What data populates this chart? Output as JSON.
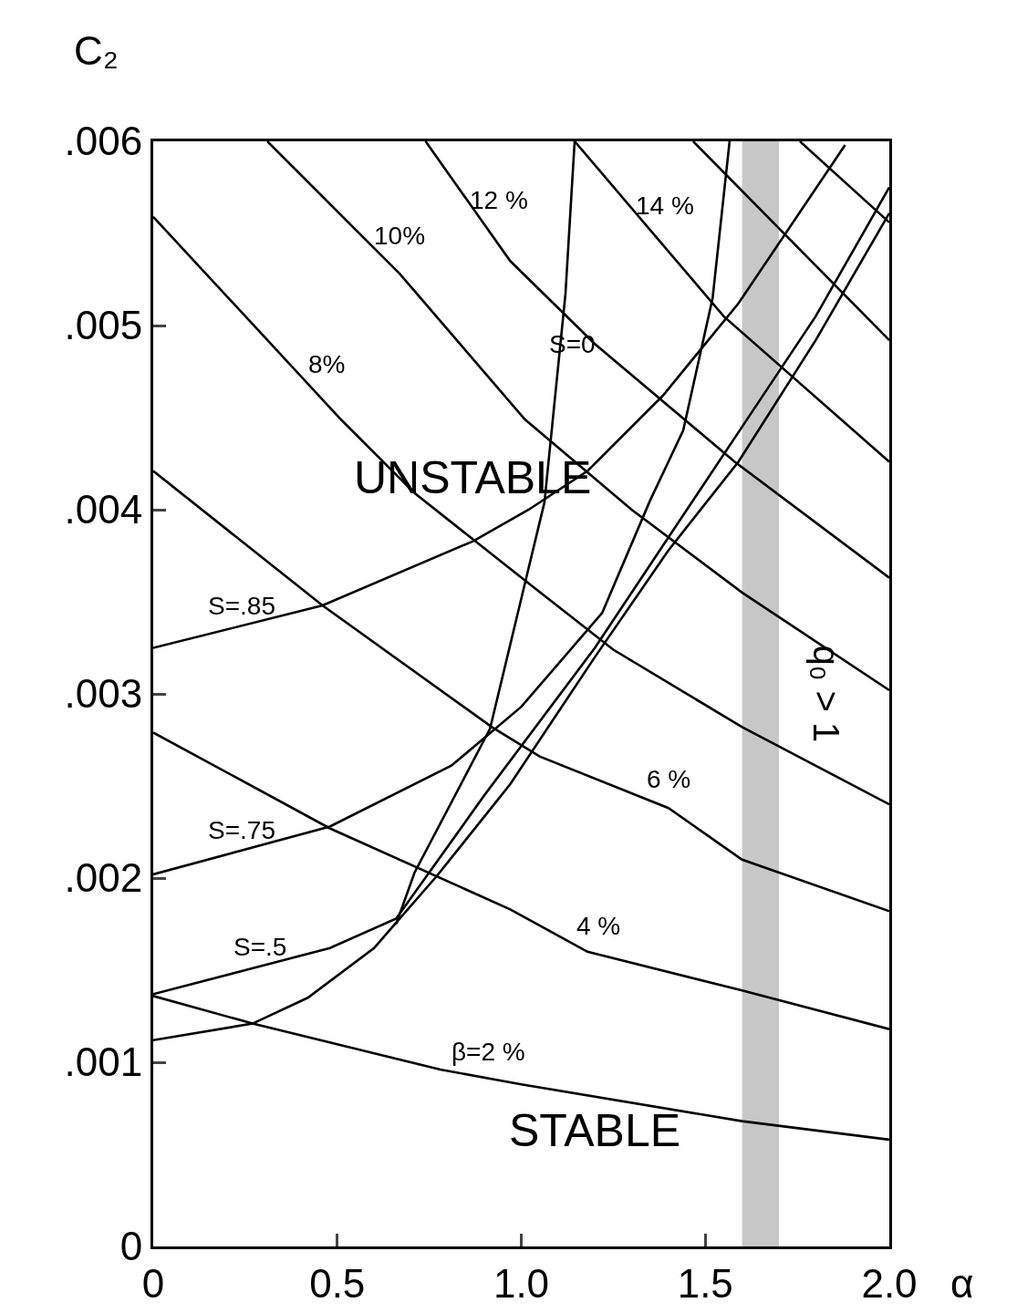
{
  "chart_data": {
    "type": "line",
    "xlabel": "α",
    "ylabel": "C₂",
    "xlim": [
      0,
      2
    ],
    "xticks": [
      0,
      0.5,
      {
        "value": 1,
        "label": "1.0"
      },
      1.5,
      {
        "value": 2,
        "label": "2.0"
      }
    ],
    "ylim": [
      0,
      0.006
    ],
    "yticks": [
      0,
      {
        "value": 0.001,
        "label": ".001"
      },
      {
        "value": 0.002,
        "label": ".002"
      },
      {
        "value": 0.003,
        "label": ".003"
      },
      {
        "value": 0.004,
        "label": ".004"
      },
      {
        "value": 0.005,
        "label": ".005"
      },
      {
        "value": 0.006,
        "label": ".006"
      }
    ],
    "grid": false,
    "marker": "none",
    "line_style": "solid",
    "series": [
      {
        "color": "#000000",
        "x": [
          0,
          0.27,
          0.78,
          1.0,
          1.6,
          2.0
        ],
        "values": [
          0.00136,
          0.00121,
          0.00096,
          0.00088,
          0.00068,
          0.00058
        ]
      },
      {
        "color": "#000000",
        "x": [
          0,
          0.48,
          0.97,
          1.18,
          1.6,
          2.0
        ],
        "values": [
          0.00279,
          0.00227,
          0.00183,
          0.0016,
          0.00139,
          0.00118
        ]
      },
      {
        "color": "#000000",
        "x": [
          0,
          0.46,
          0.92,
          1.05,
          1.4,
          1.6,
          2.0
        ],
        "values": [
          0.00421,
          0.00348,
          0.00282,
          0.00266,
          0.00238,
          0.0021,
          0.00182
        ]
      },
      {
        "color": "#000000",
        "x": [
          0,
          0.51,
          0.71,
          1.02,
          1.25,
          1.6,
          2.0
        ],
        "values": [
          0.00559,
          0.00449,
          0.00409,
          0.0036,
          0.00324,
          0.00282,
          0.0024
        ]
      },
      {
        "color": "#000000",
        "x": [
          0.31,
          0.67,
          1.01,
          1.3,
          1.6,
          2.0
        ],
        "values": [
          0.006,
          0.00528,
          0.00449,
          0.004,
          0.00355,
          0.00302
        ]
      },
      {
        "color": "#000000",
        "x": [
          0.74,
          0.97,
          1.2,
          1.58,
          2.0
        ],
        "values": [
          0.006,
          0.00535,
          0.0049,
          0.00426,
          0.00363
        ]
      },
      {
        "color": "#000000",
        "x": [
          1.145,
          1.55,
          2.0
        ],
        "values": [
          0.006,
          0.00505,
          0.00426
        ]
      },
      {
        "color": "#000000",
        "x": [
          1.467,
          2.0
        ],
        "values": [
          0.006,
          0.00492
        ]
      },
      {
        "color": "#000000",
        "x": [
          1.757,
          2.0
        ],
        "values": [
          0.006,
          0.00556
        ]
      },
      {
        "color": "#000000",
        "x": [
          0.66,
          0.71,
          0.915,
          1.01,
          1.063,
          1.12,
          1.145
        ],
        "values": [
          0.00175,
          0.00203,
          0.00281,
          0.0036,
          0.00404,
          0.00517,
          0.006
        ]
      },
      {
        "color": "#000000",
        "x": [
          0,
          0.48,
          0.81,
          1.0,
          1.22,
          1.35,
          1.44,
          1.52,
          1.566
        ],
        "values": [
          0.00202,
          0.00228,
          0.00261,
          0.00293,
          0.00344,
          0.00405,
          0.00443,
          0.00515,
          0.006
        ]
      },
      {
        "color": "#000000",
        "x": [
          0,
          0.46,
          0.87,
          1.02,
          1.18,
          1.385,
          1.59,
          1.88
        ],
        "values": [
          0.00325,
          0.00348,
          0.00383,
          0.004,
          0.00421,
          0.00462,
          0.00512,
          0.00598
        ]
      },
      {
        "color": "#000000",
        "x": [
          0,
          0.25,
          0.48,
          0.66,
          0.9,
          1.2,
          1.4,
          1.6,
          1.8,
          2.0
        ],
        "values": [
          0.00137,
          0.0015,
          0.00162,
          0.00178,
          0.00245,
          0.00325,
          0.00385,
          0.00445,
          0.00505,
          0.00575
        ]
      },
      {
        "color": "#000000",
        "x": [
          0,
          0.27,
          0.42,
          0.6,
          0.77,
          0.97,
          1.2,
          1.4,
          1.59,
          1.8,
          2.0
        ],
        "values": [
          0.00112,
          0.00121,
          0.00135,
          0.00162,
          0.00201,
          0.00251,
          0.0032,
          0.00378,
          0.00426,
          0.00492,
          0.00561
        ]
      }
    ],
    "bands": [
      {
        "axis": "x",
        "from": 1.6,
        "to": 1.7,
        "label": "q₀ > 1",
        "color": "#000000"
      }
    ],
    "annotations": [
      "UNSTABLE",
      "STABLE",
      {
        "text": "β=2 %",
        "x": 0.87,
        "y": 0.00093
      },
      {
        "text": "4 %",
        "x": 1.17,
        "y": 0.00161
      },
      {
        "text": "6 %",
        "x": 1.36,
        "y": 0.00241
      },
      {
        "text": "8%",
        "x": 0.43,
        "y": 0.00466
      },
      {
        "text": "10%",
        "x": 0.63,
        "y": 0.00536
      },
      {
        "text": "12 %",
        "x": 0.9,
        "y": 0.00555
      },
      {
        "text": "14 %",
        "x": 1.35,
        "y": 0.00552
      },
      {
        "text": "S=0",
        "x": 1.1,
        "y": 0.00477
      },
      {
        "text": "S=.85",
        "x": 0.2,
        "y": 0.00335
      },
      {
        "text": "S=.75",
        "x": 0.2,
        "y": 0.00213
      },
      {
        "text": "S=.5",
        "x": 0.25,
        "y": 0.0015
      }
    ]
  }
}
